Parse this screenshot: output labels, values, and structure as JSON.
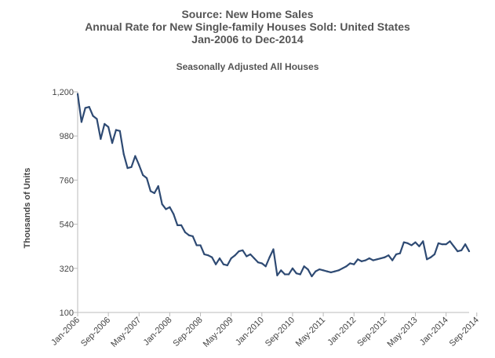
{
  "title_lines": [
    "Source: New Home Sales",
    "Annual Rate for New Single-family Houses Sold: United States",
    "Jan-2006 to Dec-2014"
  ],
  "subtitle": "Seasonally Adjusted All Houses",
  "colors": {
    "line": "#2e4a73",
    "axis": "#bbbbbb",
    "text": "#555555"
  },
  "chart_data": {
    "type": "line",
    "title": "Source: New Home Sales",
    "subtitle": "Seasonally Adjusted All Houses",
    "xlabel": "",
    "ylabel": "Thousands of Units",
    "ylim": [
      100,
      1200
    ],
    "yticks": [
      100,
      320,
      540,
      760,
      980,
      1200
    ],
    "ytick_labels": [
      "100",
      "320",
      "540",
      "760",
      "980",
      "1,200"
    ],
    "xtick_labels": [
      "Jan-2006",
      "Sep-2006",
      "May-2007",
      "Jan-2008",
      "Sep-2008",
      "May-2009",
      "Jan-2010",
      "Sep-2010",
      "May-2011",
      "Jan-2012",
      "Sep-2012",
      "May-2013",
      "Jan-2014",
      "Sep-2014"
    ],
    "grid": false,
    "legend": "none",
    "series": [
      {
        "values": [
          1190,
          1050,
          1120,
          1125,
          1080,
          1065,
          965,
          1040,
          1025,
          945,
          1010,
          1005,
          890,
          820,
          825,
          880,
          835,
          785,
          770,
          705,
          695,
          730,
          640,
          615,
          625,
          590,
          535,
          535,
          500,
          485,
          480,
          435,
          435,
          390,
          385,
          375,
          340,
          370,
          340,
          335,
          370,
          385,
          405,
          410,
          380,
          390,
          370,
          350,
          345,
          330,
          375,
          415,
          285,
          310,
          290,
          290,
          320,
          295,
          290,
          330,
          315,
          280,
          305,
          315,
          310,
          305,
          300,
          305,
          310,
          320,
          330,
          345,
          340,
          365,
          355,
          360,
          370,
          360,
          365,
          370,
          375,
          385,
          360,
          390,
          395,
          450,
          445,
          435,
          450,
          430,
          455,
          365,
          375,
          390,
          445,
          440,
          440,
          455,
          430,
          405,
          410,
          440,
          405
        ]
      }
    ]
  }
}
